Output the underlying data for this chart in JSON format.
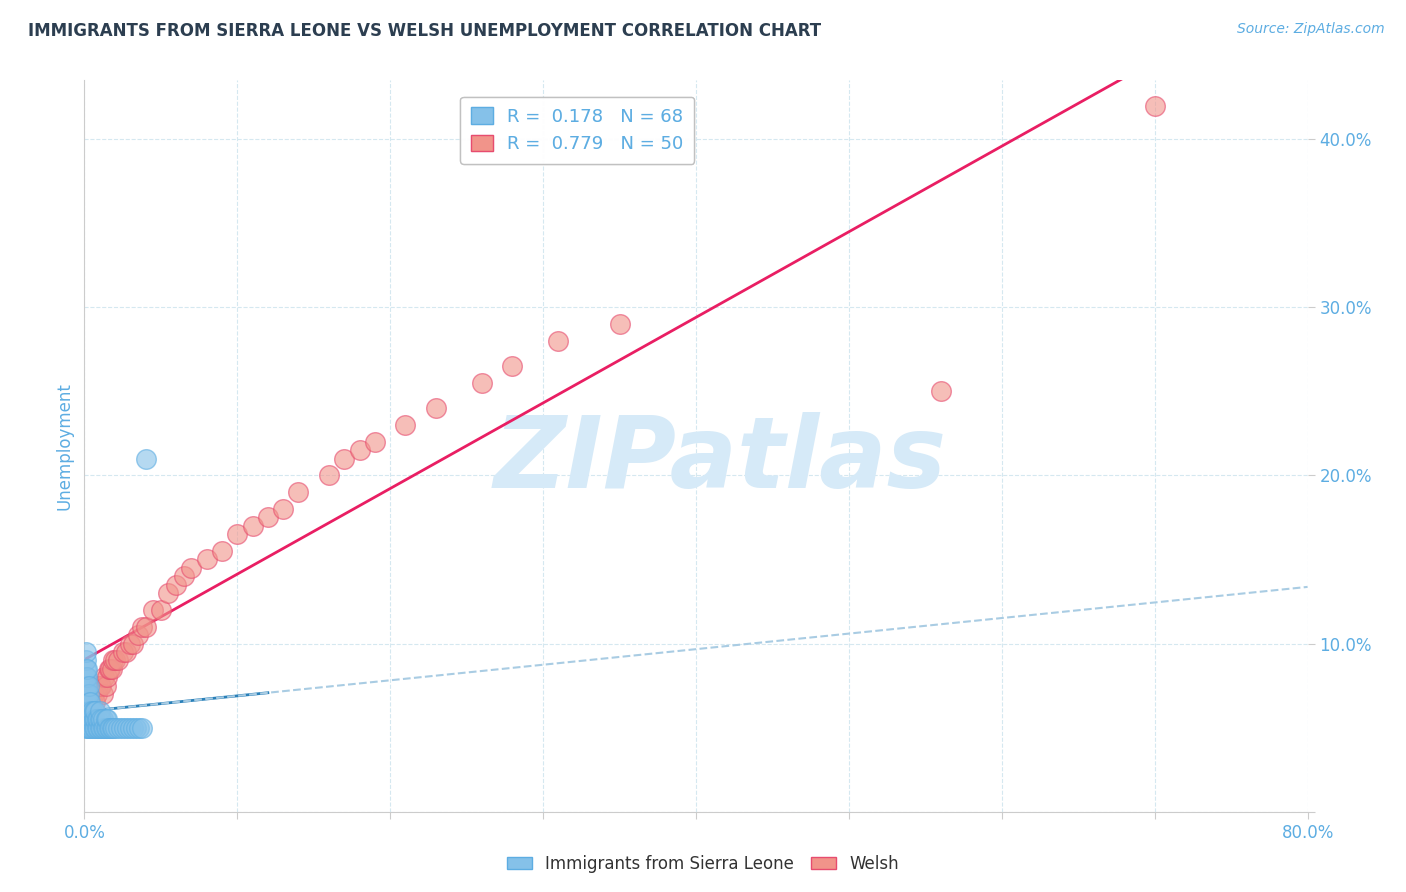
{
  "title": "IMMIGRANTS FROM SIERRA LEONE VS WELSH UNEMPLOYMENT CORRELATION CHART",
  "source": "Source: ZipAtlas.com",
  "ylabel": "Unemployment",
  "xlim": [
    0.0,
    0.8
  ],
  "ylim": [
    0.0,
    0.435
  ],
  "series1_label": "Immigrants from Sierra Leone",
  "series2_label": "Welsh",
  "series1_color": "#85C1E9",
  "series2_color": "#F1948A",
  "series1_edge": "#5DADE2",
  "series2_edge": "#E74C6F",
  "watermark_text": "ZIPatlas",
  "watermark_color": "#D6EAF8",
  "title_color": "#2C3E50",
  "axis_color": "#5DADE2",
  "grid_color": "#D5E8F0",
  "background_color": "#FFFFFF",
  "reg1_color": "#2980B9",
  "reg1_dash_color": "#A9CCE3",
  "reg2_color": "#E91E63",
  "legend_r1": "R =  0.178",
  "legend_n1": "N = 68",
  "legend_r2": "R =  0.779",
  "legend_n2": "N = 50",
  "s1x": [
    0.001,
    0.001,
    0.001,
    0.001,
    0.001,
    0.001,
    0.001,
    0.001,
    0.001,
    0.001,
    0.002,
    0.002,
    0.002,
    0.002,
    0.002,
    0.002,
    0.002,
    0.002,
    0.003,
    0.003,
    0.003,
    0.003,
    0.003,
    0.003,
    0.004,
    0.004,
    0.004,
    0.004,
    0.005,
    0.005,
    0.005,
    0.006,
    0.006,
    0.006,
    0.007,
    0.007,
    0.007,
    0.008,
    0.008,
    0.009,
    0.009,
    0.01,
    0.01,
    0.01,
    0.011,
    0.011,
    0.012,
    0.012,
    0.013,
    0.014,
    0.014,
    0.015,
    0.015,
    0.016,
    0.017,
    0.018,
    0.019,
    0.02,
    0.022,
    0.024,
    0.026,
    0.028,
    0.03,
    0.032,
    0.034,
    0.036,
    0.038,
    0.04
  ],
  "s1y": [
    0.05,
    0.055,
    0.06,
    0.065,
    0.07,
    0.075,
    0.08,
    0.085,
    0.09,
    0.095,
    0.05,
    0.055,
    0.06,
    0.065,
    0.07,
    0.075,
    0.08,
    0.085,
    0.05,
    0.055,
    0.06,
    0.065,
    0.07,
    0.075,
    0.05,
    0.055,
    0.06,
    0.065,
    0.05,
    0.055,
    0.06,
    0.05,
    0.055,
    0.06,
    0.05,
    0.055,
    0.06,
    0.05,
    0.055,
    0.05,
    0.055,
    0.05,
    0.055,
    0.06,
    0.05,
    0.055,
    0.05,
    0.055,
    0.05,
    0.05,
    0.055,
    0.05,
    0.055,
    0.05,
    0.05,
    0.05,
    0.05,
    0.05,
    0.05,
    0.05,
    0.05,
    0.05,
    0.05,
    0.05,
    0.05,
    0.05,
    0.05,
    0.21
  ],
  "s2x": [
    0.003,
    0.005,
    0.006,
    0.007,
    0.008,
    0.009,
    0.01,
    0.011,
    0.012,
    0.013,
    0.014,
    0.015,
    0.016,
    0.017,
    0.018,
    0.019,
    0.02,
    0.022,
    0.025,
    0.027,
    0.03,
    0.032,
    0.035,
    0.038,
    0.04,
    0.045,
    0.05,
    0.055,
    0.06,
    0.065,
    0.07,
    0.08,
    0.09,
    0.1,
    0.11,
    0.12,
    0.13,
    0.14,
    0.16,
    0.17,
    0.18,
    0.19,
    0.21,
    0.23,
    0.26,
    0.28,
    0.31,
    0.35,
    0.56,
    0.7
  ],
  "s2y": [
    0.06,
    0.065,
    0.07,
    0.065,
    0.07,
    0.075,
    0.075,
    0.075,
    0.07,
    0.08,
    0.075,
    0.08,
    0.085,
    0.085,
    0.085,
    0.09,
    0.09,
    0.09,
    0.095,
    0.095,
    0.1,
    0.1,
    0.105,
    0.11,
    0.11,
    0.12,
    0.12,
    0.13,
    0.135,
    0.14,
    0.145,
    0.15,
    0.155,
    0.165,
    0.17,
    0.175,
    0.18,
    0.19,
    0.2,
    0.21,
    0.215,
    0.22,
    0.23,
    0.24,
    0.255,
    0.265,
    0.28,
    0.29,
    0.25,
    0.42
  ]
}
